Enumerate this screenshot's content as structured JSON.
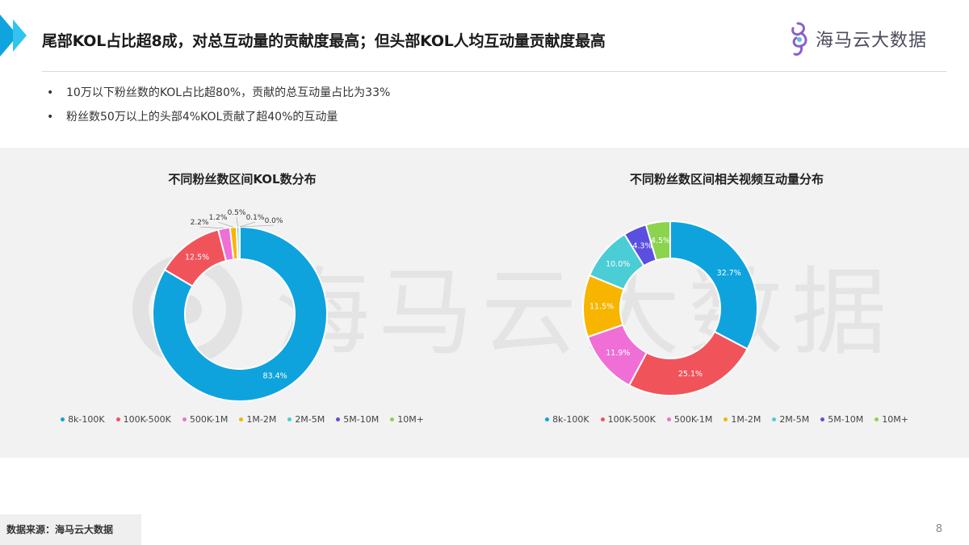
{
  "header": {
    "title": "尾部KOL占比超8成，对总互动量的贡献度最高；但头部KOL人均互动量贡献度最高",
    "logo_text": "海马云大数据"
  },
  "bullets": [
    "10万以下粉丝数的KOL占比超80%，贡献的总互动量占比为33%",
    "粉丝数50万以上的头部4%KOL贡献了超40%的互动量"
  ],
  "bullet_symbol": "•",
  "watermark_text": "海马云大数据",
  "colors": {
    "accent": "#0ea4dd",
    "series": [
      "#0fa3de",
      "#f0545a",
      "#ef6fd6",
      "#f7b500",
      "#4bcdd6",
      "#5b4fe0",
      "#8cd34e"
    ]
  },
  "chart_data": [
    {
      "type": "pie",
      "donut": true,
      "title": "不同粉丝数区间KOL数分布",
      "categories": [
        "8k-100K",
        "100K-500K",
        "500K-1M",
        "1M-2M",
        "2M-5M",
        "5M-10M",
        "10M+"
      ],
      "values": [
        83.4,
        12.5,
        2.2,
        1.2,
        0.5,
        0.1,
        0.0
      ],
      "labels": [
        "83.4%",
        "12.5%",
        "2.2%",
        "1.2%",
        "0.5%",
        "0.1%",
        "0.0%"
      ],
      "legend_position": "bottom"
    },
    {
      "type": "pie",
      "donut": true,
      "title": "不同粉丝数区间相关视频互动量分布",
      "categories": [
        "8k-100K",
        "100K-500K",
        "500K-1M",
        "1M-2M",
        "2M-5M",
        "5M-10M",
        "10M+"
      ],
      "values": [
        32.7,
        25.1,
        11.9,
        11.5,
        10.0,
        4.3,
        4.5
      ],
      "labels": [
        "32.7%",
        "25.1%",
        "11.9%",
        "11.5%",
        "10.0%",
        "4.3%",
        "4.5%"
      ],
      "legend_position": "bottom"
    }
  ],
  "footer": {
    "source": "数据来源：海马云大数据",
    "page_number": "8"
  }
}
